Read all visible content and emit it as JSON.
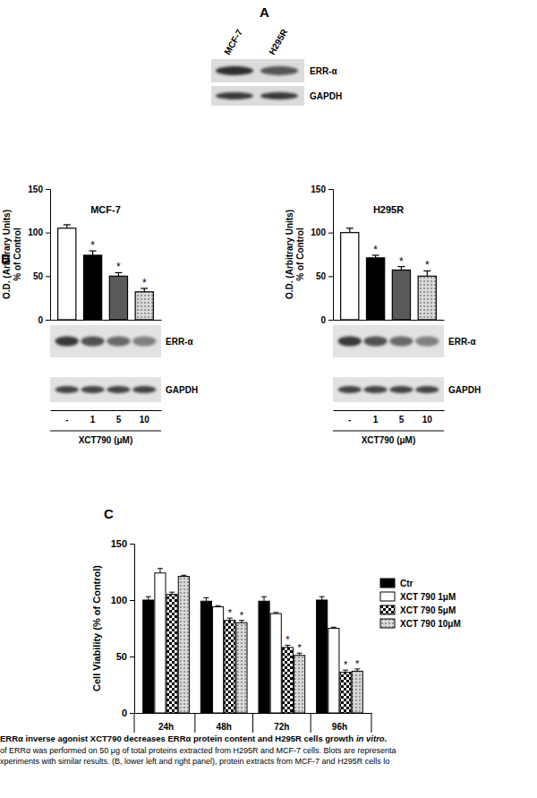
{
  "panel_labels": {
    "a": "A",
    "b": "B",
    "c": "C"
  },
  "blot_a": {
    "lanes": [
      "MCF-7",
      "H295R"
    ],
    "bands": [
      "ERR-α",
      "GAPDH"
    ]
  },
  "chart_data": [
    {
      "type": "bar",
      "title": "MCF-7",
      "y_label": [
        "O.D. (Arbitrary Units)",
        "% of Control"
      ],
      "x_label": "XCT790 (μM)",
      "categories": [
        "-",
        "1",
        "5",
        "10"
      ],
      "values": [
        105,
        74,
        50,
        32
      ],
      "errors": [
        4,
        5,
        4,
        4
      ],
      "significance": [
        null,
        "*",
        "*",
        "*"
      ],
      "colors": [
        "#ffffff",
        "#000000",
        "#5a5a5a",
        "#d9d9d9"
      ],
      "ylim": [
        0,
        150
      ],
      "yticks": [
        0,
        50,
        100,
        150
      ],
      "blot_bands": [
        "ERR-α",
        "GAPDH"
      ]
    },
    {
      "type": "bar",
      "title": "H295R",
      "y_label": [
        "O.D. (Arbitrary Units)",
        "% of Control"
      ],
      "x_label": "XCT790 (μM)",
      "categories": [
        "-",
        "1",
        "5",
        "10"
      ],
      "values": [
        100,
        71,
        57,
        50
      ],
      "errors": [
        5,
        3,
        4,
        6
      ],
      "significance": [
        null,
        "*",
        "*",
        "*"
      ],
      "colors": [
        "#ffffff",
        "#000000",
        "#5a5a5a",
        "#d9d9d9"
      ],
      "ylim": [
        0,
        150
      ],
      "yticks": [
        0,
        50,
        100,
        150
      ],
      "blot_bands": [
        "ERR-α",
        "GAPDH"
      ]
    },
    {
      "type": "bar",
      "y_label": "Cell Viability (% of Control)",
      "categories": [
        "24h",
        "48h",
        "72h",
        "96h"
      ],
      "series": [
        {
          "name": "Ctr",
          "color": "#000000",
          "values": [
            100,
            99,
            99,
            100
          ],
          "errors": [
            3,
            3,
            4,
            3
          ],
          "significance": [
            null,
            null,
            null,
            null
          ]
        },
        {
          "name": "XCT 790 1μM",
          "color": "#ffffff",
          "values": [
            124,
            94,
            88,
            75
          ],
          "errors": [
            4,
            1,
            1,
            1
          ],
          "significance": [
            null,
            null,
            null,
            null
          ]
        },
        {
          "name": "XCT 790 5μM",
          "color": "#ffffff",
          "values": [
            105,
            82,
            58,
            36
          ],
          "errors": [
            2,
            2,
            2,
            2
          ],
          "significance": [
            null,
            "*",
            "*",
            "*"
          ]
        },
        {
          "name": "XCT 790 10μM",
          "color": "#d9d9d9",
          "values": [
            121,
            80,
            51,
            37
          ],
          "errors": [
            1,
            2,
            2,
            2
          ],
          "significance": [
            null,
            "*",
            "*",
            "*"
          ]
        }
      ],
      "ylim": [
        0,
        150
      ],
      "yticks": [
        0,
        50,
        100,
        150
      ],
      "legend": "upper right"
    }
  ],
  "caption": {
    "title": [
      "ERRα inverse agonist XCT790 decreases ERRα protein content and H295R cells growth",
      "in vitro."
    ],
    "lines": [
      "of ERRα was performed on 50 μg of total proteins extracted from H295R and MCF-7 cells. Blots are representa",
      "xperiments with similar results. (B, lower left and right panel), protein extracts from MCF-7 and H295R cells lo"
    ]
  }
}
